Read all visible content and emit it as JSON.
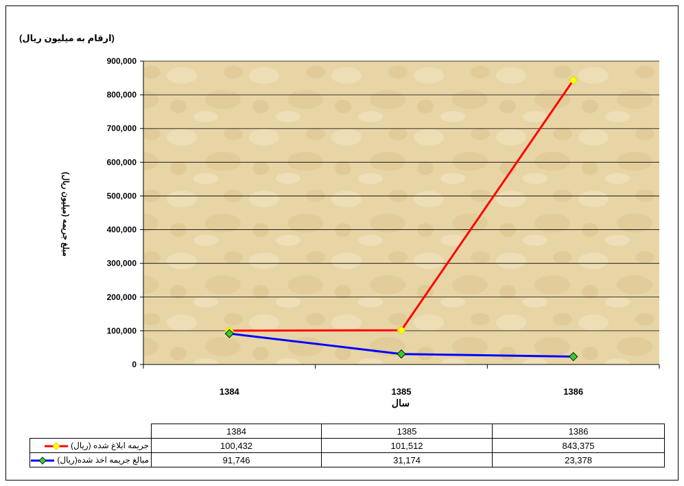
{
  "header": {
    "unit_note": "(ارقام به میلیون ریال)"
  },
  "chart_data": {
    "type": "line",
    "ylabel": "مبلغ جریمه (میلیون ریال)",
    "xlabel": "سال",
    "categories": [
      "1384",
      "1385",
      "1386"
    ],
    "ylim": [
      0,
      900000
    ],
    "yticks": [
      0,
      100000,
      200000,
      300000,
      400000,
      500000,
      600000,
      700000,
      800000,
      900000
    ],
    "ytick_labels": [
      "0",
      "100,000",
      "200,000",
      "300,000",
      "400,000",
      "500,000",
      "600,000",
      "700,000",
      "800,000",
      "900,000"
    ],
    "grid": true,
    "series": [
      {
        "name": "جریمه ابلاغ شده (ریال)",
        "values": [
          100432,
          101512,
          843375
        ],
        "color": "#ff0000",
        "marker": "diamond",
        "marker_color": "#ffff00"
      },
      {
        "name": "مبالغ جریمه اخذ شده(ریال)",
        "values": [
          91746,
          31174,
          23378
        ],
        "color": "#0000ff",
        "marker": "diamond",
        "marker_color": "#33cc33"
      }
    ]
  },
  "table": {
    "header": [
      "1384",
      "1385",
      "1386"
    ],
    "rows": [
      {
        "label": "جریمه ابلاغ شده (ریال)",
        "cells": [
          "100,432",
          "101,512",
          "843,375"
        ]
      },
      {
        "label": "مبالغ جریمه اخذ شده(ریال)",
        "cells": [
          "91,746",
          "31,174",
          "23,378"
        ]
      }
    ]
  },
  "colors": {
    "plot_background": "#e8d5a6",
    "gridline": "#000000"
  }
}
